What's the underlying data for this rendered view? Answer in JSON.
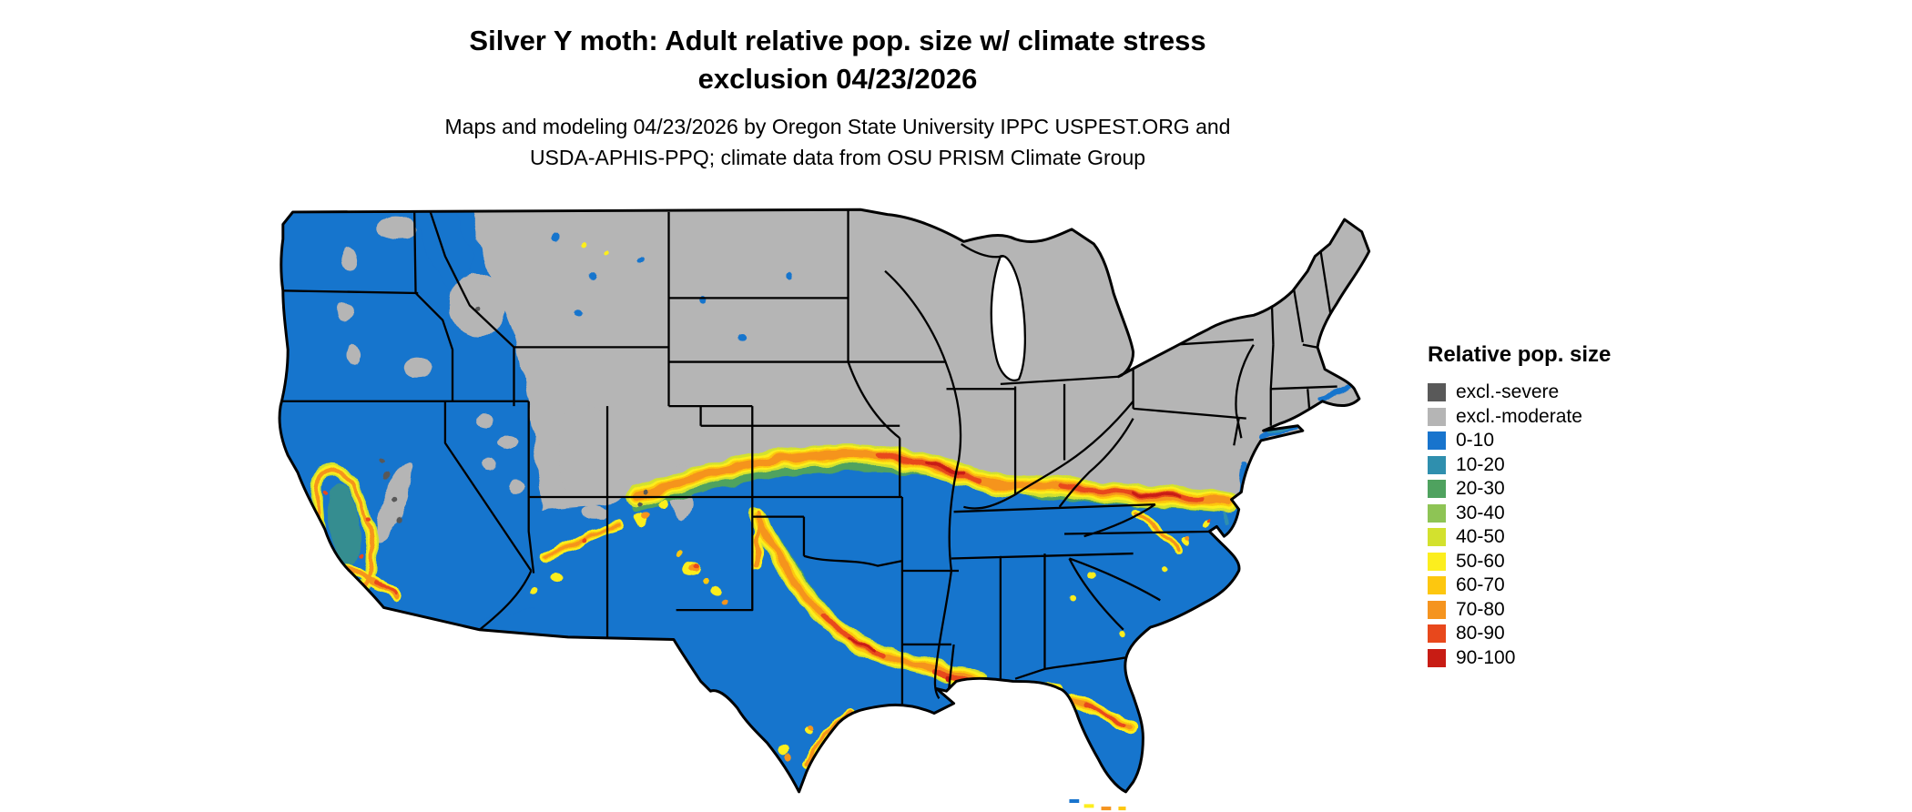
{
  "title": {
    "line1": "Silver Y moth: Adult relative pop. size w/ climate stress",
    "line2": "exclusion 04/23/2026"
  },
  "subtitle": {
    "line1": "Maps and modeling 04/23/2026 by Oregon State University IPPC USPEST.ORG and",
    "line2": "USDA-APHIS-PPQ; climate data from OSU PRISM Climate Group"
  },
  "legend": {
    "title": "Relative pop. size",
    "items": [
      {
        "label": "excl.-severe",
        "color": "#595959"
      },
      {
        "label": "excl.-moderate",
        "color": "#b5b5b5"
      },
      {
        "label": "0-10",
        "color": "#1874cd"
      },
      {
        "label": "10-20",
        "color": "#2f8fae"
      },
      {
        "label": "20-30",
        "color": "#4fa25f"
      },
      {
        "label": "30-40",
        "color": "#8ec455"
      },
      {
        "label": "40-50",
        "color": "#d3e12e"
      },
      {
        "label": "50-60",
        "color": "#fcee1e"
      },
      {
        "label": "60-70",
        "color": "#fdc70f"
      },
      {
        "label": "70-80",
        "color": "#f5941f"
      },
      {
        "label": "80-90",
        "color": "#e8481c"
      },
      {
        "label": "90-100",
        "color": "#c81c14"
      }
    ]
  },
  "map": {
    "border_color": "#000000",
    "water_color": "#ffffff"
  }
}
